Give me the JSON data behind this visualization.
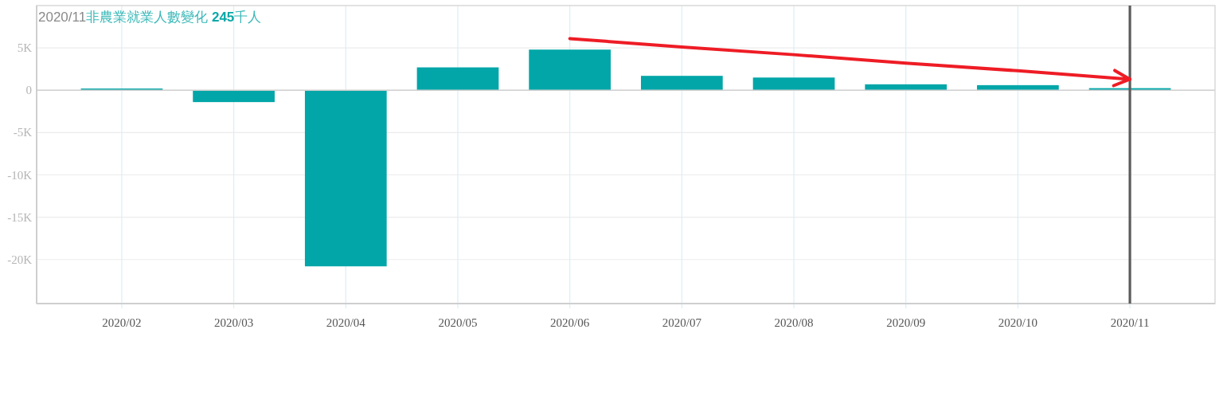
{
  "chart_data": {
    "type": "bar",
    "title": "2020/11",
    "subtitle": "非農業就業人數變化 245千人",
    "categories": [
      "2020/02",
      "2020/03",
      "2020/04",
      "2020/05",
      "2020/06",
      "2020/07",
      "2020/08",
      "2020/09",
      "2020/10",
      "2020/11"
    ],
    "series": [
      {
        "color": "#02a6a8",
        "values": [
          200,
          -1400,
          -20800,
          2700,
          4800,
          1700,
          1500,
          700,
          600,
          245
        ]
      },
      {
        "type": "line",
        "values": [
          null,
          null,
          null,
          null,
          6100,
          5100,
          4200,
          3200,
          2300,
          1300
        ],
        "color": "#ee1c25"
      }
    ],
    "ylim": [
      -25200,
      10000
    ],
    "yticks": [
      {
        "value": -20000,
        "label": "-20K"
      },
      {
        "value": -15000,
        "label": "-15K"
      },
      {
        "value": -10000,
        "label": "-10K"
      },
      {
        "value": -5000,
        "label": "-5K"
      },
      0,
      {
        "value": 5000,
        "label": "5K"
      }
    ],
    "grid": true,
    "ref_lines": [
      {
        "axis": "x",
        "value": "2020/11",
        "color": "#5c5c5c"
      }
    ]
  }
}
